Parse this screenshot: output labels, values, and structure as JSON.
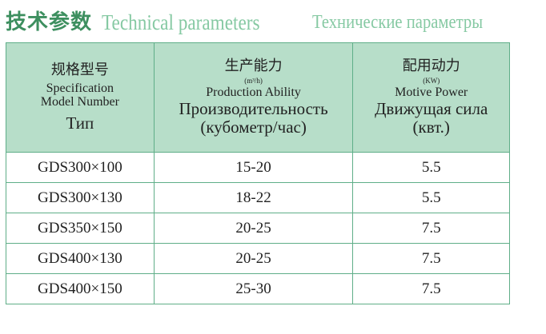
{
  "title": {
    "cn": "技术参数",
    "en": "Technical parameters",
    "ru": "Технические параметры"
  },
  "colors": {
    "header_bg": "#b7dec9",
    "border": "#5fae88",
    "title_cn": "#3d8f5f",
    "title_latin": "#86c9a3"
  },
  "table": {
    "headers": [
      {
        "cn": "规格型号",
        "unit": "",
        "en": "Specification Model Number",
        "ru": "Тип",
        "ru2": ""
      },
      {
        "cn": "生产能力",
        "unit": "(m³/h)",
        "en": "Production Ability",
        "ru": "Производительность",
        "ru2": "(кубометр/час)"
      },
      {
        "cn": "配用动力",
        "unit": "(KW)",
        "en": "Motive Power",
        "ru": "Движущая сила",
        "ru2": "(квт.)"
      }
    ],
    "rows": [
      [
        "GDS300×100",
        "15-20",
        "5.5"
      ],
      [
        "GDS300×130",
        "18-22",
        "5.5"
      ],
      [
        "GDS350×150",
        "20-25",
        "7.5"
      ],
      [
        "GDS400×130",
        "20-25",
        "7.5"
      ],
      [
        "GDS400×150",
        "25-30",
        "7.5"
      ]
    ]
  }
}
